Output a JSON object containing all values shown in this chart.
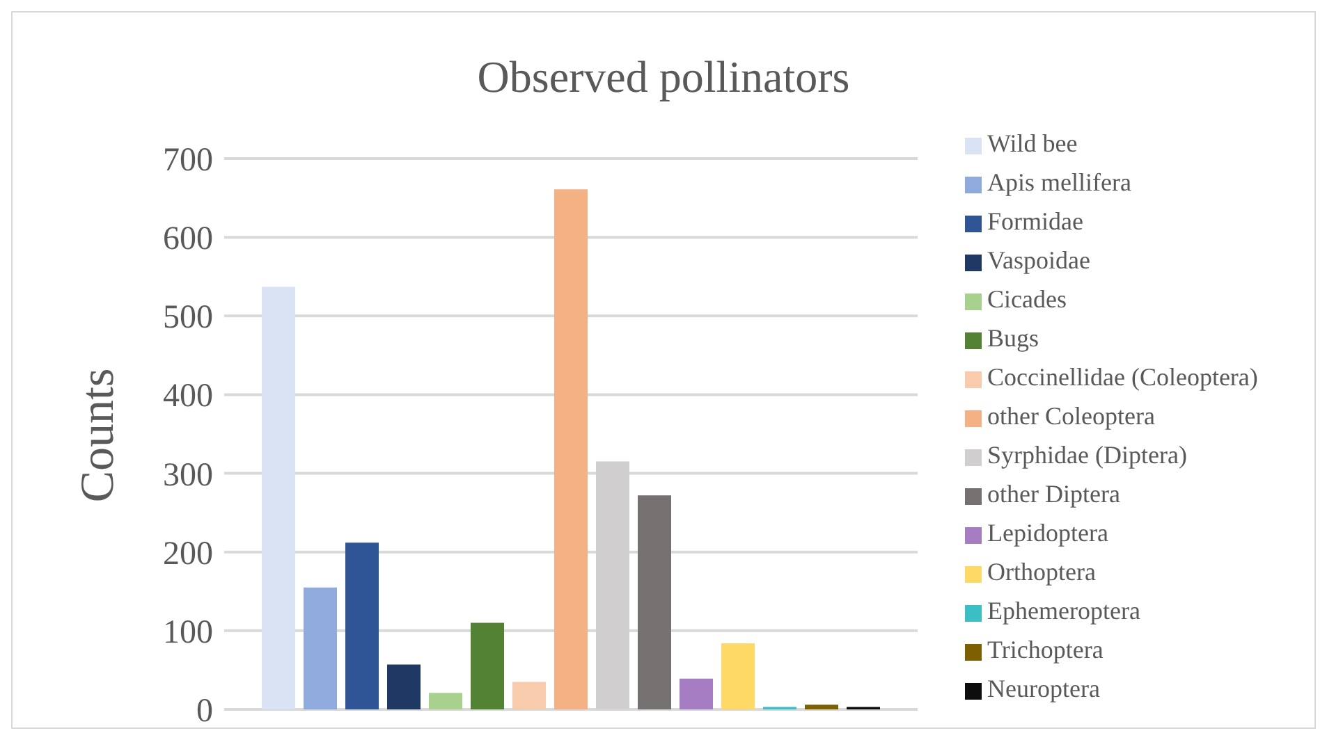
{
  "chart_data": {
    "type": "bar",
    "title": "Observed pollinators",
    "ylabel": "Counts",
    "categories": [
      null
    ],
    "series": [
      {
        "name": "Wild bee",
        "color": "#dae3f3",
        "values": [
          537
        ]
      },
      {
        "name": "Apis mellifera",
        "color": "#8faadc",
        "values": [
          155
        ]
      },
      {
        "name": "Formidae",
        "color": "#2f5597",
        "values": [
          212
        ]
      },
      {
        "name": "Vaspoidae",
        "color": "#203864",
        "values": [
          57
        ]
      },
      {
        "name": "Cicades",
        "color": "#a9d18e",
        "values": [
          21
        ]
      },
      {
        "name": "Bugs",
        "color": "#548235",
        "values": [
          110
        ]
      },
      {
        "name": "Coccinellidae (Coleoptera)",
        "color": "#f8cbad",
        "values": [
          35
        ]
      },
      {
        "name": "other Coleoptera",
        "color": "#f4b183",
        "values": [
          661
        ]
      },
      {
        "name": "Syrphidae (Diptera)",
        "color": "#d0cece",
        "values": [
          315
        ]
      },
      {
        "name": "other Diptera",
        "color": "#767171",
        "values": [
          272
        ]
      },
      {
        "name": "Lepidoptera",
        "color": "#a67dc2",
        "values": [
          39
        ]
      },
      {
        "name": "Orthoptera",
        "color": "#ffd966",
        "values": [
          84
        ]
      },
      {
        "name": "Ephemeroptera",
        "color": "#3bbfc7",
        "values": [
          3
        ]
      },
      {
        "name": "Trichoptera",
        "color": "#7f6000",
        "values": [
          6
        ]
      },
      {
        "name": "Neuroptera",
        "color": "#0d0d0d",
        "values": [
          3
        ]
      }
    ],
    "ylim": [
      0,
      700
    ],
    "yticks": [
      0,
      100,
      200,
      300,
      400,
      500,
      600,
      700
    ],
    "grid": "y",
    "legend": "right",
    "tick_labels": "y"
  }
}
